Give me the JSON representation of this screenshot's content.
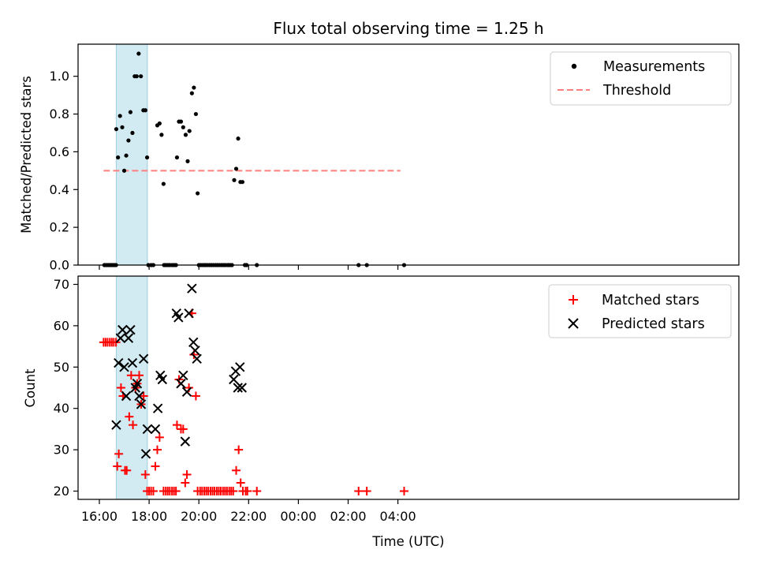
{
  "chart_data": {
    "title": "Flux total observing time = 1.25 h",
    "xlabel": "Time (UTC)",
    "x_ticks": [
      "16:00",
      "18:00",
      "20:00",
      "22:00",
      "00:00",
      "02:00",
      "04:00"
    ],
    "highlight_span_hours": [
      16.68,
      17.93
    ],
    "highlight_color": "#add8e6",
    "subplots": [
      {
        "type": "scatter",
        "ylabel": "Matched/Predicted stars",
        "ylim": [
          0,
          1.17
        ],
        "y_ticks": [
          "0.0",
          "0.2",
          "0.4",
          "0.6",
          "0.8",
          "1.0"
        ],
        "legend_placement": "upper-right",
        "series": [
          {
            "name": "Measurements",
            "marker": "dot",
            "color": "#000000",
            "points": [
              [
                16.2,
                0
              ],
              [
                16.27,
                0
              ],
              [
                16.33,
                0
              ],
              [
                16.4,
                0
              ],
              [
                16.47,
                0
              ],
              [
                16.53,
                0
              ],
              [
                16.6,
                0
              ],
              [
                16.67,
                0
              ],
              [
                16.68,
                0.72
              ],
              [
                16.75,
                0.57
              ],
              [
                16.83,
                0.79
              ],
              [
                16.92,
                0.73
              ],
              [
                17.0,
                0.5
              ],
              [
                17.08,
                0.58
              ],
              [
                17.17,
                0.66
              ],
              [
                17.25,
                0.81
              ],
              [
                17.33,
                0.7
              ],
              [
                17.42,
                1.0
              ],
              [
                17.5,
                1.0
              ],
              [
                17.58,
                1.12
              ],
              [
                17.67,
                1.0
              ],
              [
                17.77,
                0.82
              ],
              [
                17.85,
                0.82
              ],
              [
                17.92,
                0.57
              ],
              [
                17.97,
                0
              ],
              [
                18.08,
                0
              ],
              [
                18.17,
                0
              ],
              [
                18.33,
                0.74
              ],
              [
                18.42,
                0.75
              ],
              [
                18.5,
                0.69
              ],
              [
                18.58,
                0.43
              ],
              [
                18.6,
                0
              ],
              [
                18.67,
                0
              ],
              [
                18.75,
                0
              ],
              [
                18.83,
                0
              ],
              [
                18.92,
                0
              ],
              [
                19.0,
                0
              ],
              [
                19.08,
                0
              ],
              [
                19.12,
                0.57
              ],
              [
                19.2,
                0.76
              ],
              [
                19.28,
                0.76
              ],
              [
                19.37,
                0.73
              ],
              [
                19.47,
                0.69
              ],
              [
                19.55,
                0.55
              ],
              [
                19.62,
                0.71
              ],
              [
                19.72,
                0.91
              ],
              [
                19.8,
                0.94
              ],
              [
                19.88,
                0.8
              ],
              [
                19.95,
                0.38
              ],
              [
                20.0,
                0
              ],
              [
                20.08,
                0
              ],
              [
                20.17,
                0
              ],
              [
                20.25,
                0
              ],
              [
                20.33,
                0
              ],
              [
                20.42,
                0
              ],
              [
                20.5,
                0
              ],
              [
                20.58,
                0
              ],
              [
                20.67,
                0
              ],
              [
                20.75,
                0
              ],
              [
                20.83,
                0
              ],
              [
                20.92,
                0
              ],
              [
                21.0,
                0
              ],
              [
                21.08,
                0
              ],
              [
                21.17,
                0
              ],
              [
                21.25,
                0
              ],
              [
                21.33,
                0
              ],
              [
                21.42,
                0.45
              ],
              [
                21.5,
                0.51
              ],
              [
                21.58,
                0.67
              ],
              [
                21.67,
                0.44
              ],
              [
                21.75,
                0.44
              ],
              [
                21.85,
                0
              ],
              [
                21.92,
                0
              ],
              [
                22.33,
                0
              ],
              [
                26.42,
                0
              ],
              [
                26.75,
                0
              ],
              [
                28.25,
                0
              ]
            ]
          },
          {
            "name": "Threshold",
            "marker": "dashed-line",
            "color": "#ff7f7f",
            "points": [
              [
                16.17,
                0.5
              ],
              [
                28.1,
                0.5
              ]
            ]
          }
        ]
      },
      {
        "type": "scatter",
        "ylabel": "Count",
        "ylim": [
          18,
          72
        ],
        "y_ticks": [
          "20",
          "30",
          "40",
          "50",
          "60",
          "70"
        ],
        "legend_placement": "upper-right",
        "series": [
          {
            "name": "Matched stars",
            "marker": "plus",
            "color": "#ff0000",
            "points": [
              [
                16.17,
                56
              ],
              [
                16.25,
                56
              ],
              [
                16.33,
                56
              ],
              [
                16.42,
                56
              ],
              [
                16.5,
                56
              ],
              [
                16.58,
                56
              ],
              [
                16.67,
                56
              ],
              [
                16.72,
                26
              ],
              [
                16.78,
                29
              ],
              [
                16.87,
                45
              ],
              [
                16.95,
                43
              ],
              [
                17.03,
                25
              ],
              [
                17.1,
                25
              ],
              [
                17.2,
                38
              ],
              [
                17.28,
                48
              ],
              [
                17.35,
                36
              ],
              [
                17.45,
                45
              ],
              [
                17.52,
                46
              ],
              [
                17.6,
                48
              ],
              [
                17.68,
                41
              ],
              [
                17.78,
                43
              ],
              [
                17.85,
                24
              ],
              [
                17.92,
                20
              ],
              [
                18.0,
                20
              ],
              [
                18.08,
                20
              ],
              [
                18.17,
                20
              ],
              [
                18.25,
                26
              ],
              [
                18.33,
                30
              ],
              [
                18.42,
                33
              ],
              [
                18.58,
                20
              ],
              [
                18.67,
                20
              ],
              [
                18.75,
                20
              ],
              [
                18.83,
                20
              ],
              [
                18.92,
                20
              ],
              [
                19.0,
                20
              ],
              [
                19.08,
                20
              ],
              [
                19.12,
                36
              ],
              [
                19.2,
                47
              ],
              [
                19.28,
                35
              ],
              [
                19.37,
                35
              ],
              [
                19.45,
                22
              ],
              [
                19.52,
                24
              ],
              [
                19.6,
                45
              ],
              [
                19.72,
                63
              ],
              [
                19.8,
                53
              ],
              [
                19.88,
                43
              ],
              [
                19.95,
                20
              ],
              [
                20.05,
                20
              ],
              [
                20.13,
                20
              ],
              [
                20.22,
                20
              ],
              [
                20.3,
                20
              ],
              [
                20.38,
                20
              ],
              [
                20.47,
                20
              ],
              [
                20.55,
                20
              ],
              [
                20.63,
                20
              ],
              [
                20.72,
                20
              ],
              [
                20.8,
                20
              ],
              [
                20.88,
                20
              ],
              [
                20.97,
                20
              ],
              [
                21.05,
                20
              ],
              [
                21.13,
                20
              ],
              [
                21.22,
                20
              ],
              [
                21.3,
                20
              ],
              [
                21.38,
                20
              ],
              [
                21.5,
                25
              ],
              [
                21.6,
                30
              ],
              [
                21.68,
                22
              ],
              [
                21.77,
                20
              ],
              [
                21.88,
                20
              ],
              [
                21.95,
                20
              ],
              [
                22.33,
                20
              ],
              [
                26.42,
                20
              ],
              [
                26.75,
                20
              ],
              [
                28.25,
                20
              ]
            ]
          },
          {
            "name": "Predicted stars",
            "marker": "x",
            "color": "#000000",
            "points": [
              [
                16.68,
                36
              ],
              [
                16.77,
                51
              ],
              [
                16.85,
                57
              ],
              [
                16.93,
                59
              ],
              [
                17.0,
                50
              ],
              [
                17.08,
                43
              ],
              [
                17.17,
                57
              ],
              [
                17.25,
                59
              ],
              [
                17.33,
                51
              ],
              [
                17.45,
                45
              ],
              [
                17.52,
                46
              ],
              [
                17.6,
                43
              ],
              [
                17.68,
                41
              ],
              [
                17.78,
                52
              ],
              [
                17.87,
                29
              ],
              [
                17.93,
                35
              ],
              [
                18.25,
                35
              ],
              [
                18.35,
                40
              ],
              [
                18.45,
                48
              ],
              [
                18.53,
                47
              ],
              [
                19.1,
                63
              ],
              [
                19.18,
                62
              ],
              [
                19.28,
                46
              ],
              [
                19.37,
                48
              ],
              [
                19.45,
                32
              ],
              [
                19.52,
                44
              ],
              [
                19.6,
                63
              ],
              [
                19.72,
                69
              ],
              [
                19.78,
                56
              ],
              [
                19.85,
                54
              ],
              [
                19.92,
                52
              ],
              [
                21.4,
                47
              ],
              [
                21.48,
                49
              ],
              [
                21.57,
                45
              ],
              [
                21.65,
                50
              ],
              [
                21.73,
                45
              ]
            ]
          }
        ]
      }
    ]
  }
}
